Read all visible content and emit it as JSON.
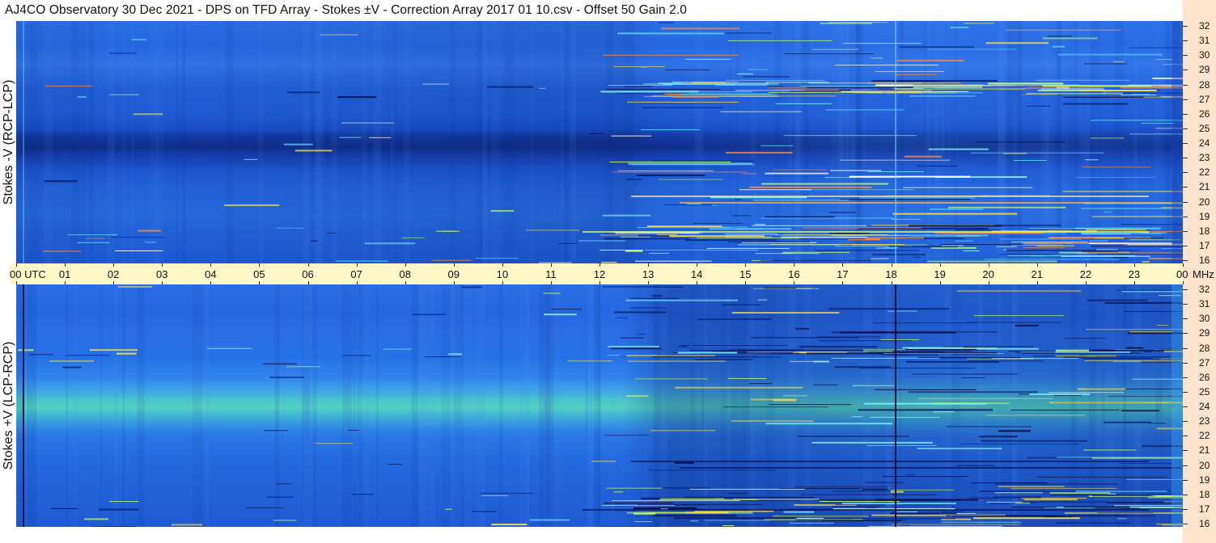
{
  "header": {
    "title": "AJ4CO Observatory  30 Dec 2021  -  DPS on TFD Array  -  Stokes ±V  -  Correction Array 2017 01 10.csv  -  Offset 50  Gain 2.0"
  },
  "panels": {
    "top": {
      "ylabel": "Stokes -V (RCP-LCP)"
    },
    "bottom": {
      "ylabel": "Stokes +V (LCP-RCP)"
    }
  },
  "time_axis": {
    "labels": [
      "00 UTC",
      "01",
      "02",
      "03",
      "04",
      "05",
      "06",
      "07",
      "08",
      "09",
      "10",
      "11",
      "12",
      "13",
      "14",
      "15",
      "16",
      "17",
      "18",
      "19",
      "20",
      "21",
      "22",
      "23",
      "00"
    ],
    "unit": "MHz"
  },
  "freq_axis": {
    "labels": [
      "32",
      "31",
      "30",
      "29",
      "28",
      "27",
      "26",
      "25",
      "24",
      "23",
      "22",
      "21",
      "20",
      "19",
      "18",
      "17",
      "16"
    ]
  },
  "colors": {
    "background": "#1e5fe0",
    "time_axis_bg": "#fff8c8",
    "side_strip": "#ffe3cc"
  }
}
